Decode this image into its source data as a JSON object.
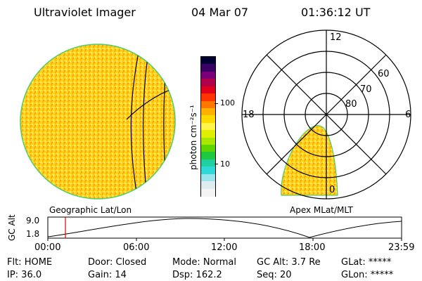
{
  "header": {
    "title": "Ultraviolet Imager",
    "date": "04 Mar 07",
    "time": "01:36:12 UT"
  },
  "geo_panel": {
    "caption": "Geographic Lat/Lon"
  },
  "apex_panel": {
    "caption": "Apex MLat/MLT",
    "mlt_labels": [
      "12",
      "18",
      "6",
      "0"
    ],
    "lat_labels": [
      "60",
      "70",
      "80"
    ]
  },
  "colorbar": {
    "unit": "photon cm⁻²s⁻¹",
    "tick_labels": [
      "100",
      "10"
    ],
    "colors": [
      "#000033",
      "#3a0066",
      "#7a0077",
      "#b0004a",
      "#e0001c",
      "#ff3300",
      "#ff7700",
      "#ffb000",
      "#ffd800",
      "#fff44a",
      "#e0f000",
      "#a8e800",
      "#5ed400",
      "#20c840",
      "#20d0a0",
      "#30d8d8",
      "#9ae4ec",
      "#dcecef",
      "#f4f4f4"
    ]
  },
  "altitude_plot": {
    "ylabel": "GC Alt",
    "y_ticks": [
      "9.0",
      "1.8"
    ],
    "x_ticks": [
      "00:00",
      "06:00",
      "12:00",
      "18:00",
      "23:59"
    ],
    "marker_color": "#e00000"
  },
  "status": {
    "row1": {
      "filter": "Flt: HOME",
      "door": "Door: Closed",
      "mode": "Mode: Normal",
      "gc_alt": "GC Alt: 3.7 Re",
      "glat": "GLat: *****"
    },
    "row2": {
      "ip": "IP: 36.0",
      "gain": "Gain: 14",
      "dsp": "Dsp: 162.2",
      "seq": "Seq: 20",
      "glon": "GLon: *****"
    }
  }
}
